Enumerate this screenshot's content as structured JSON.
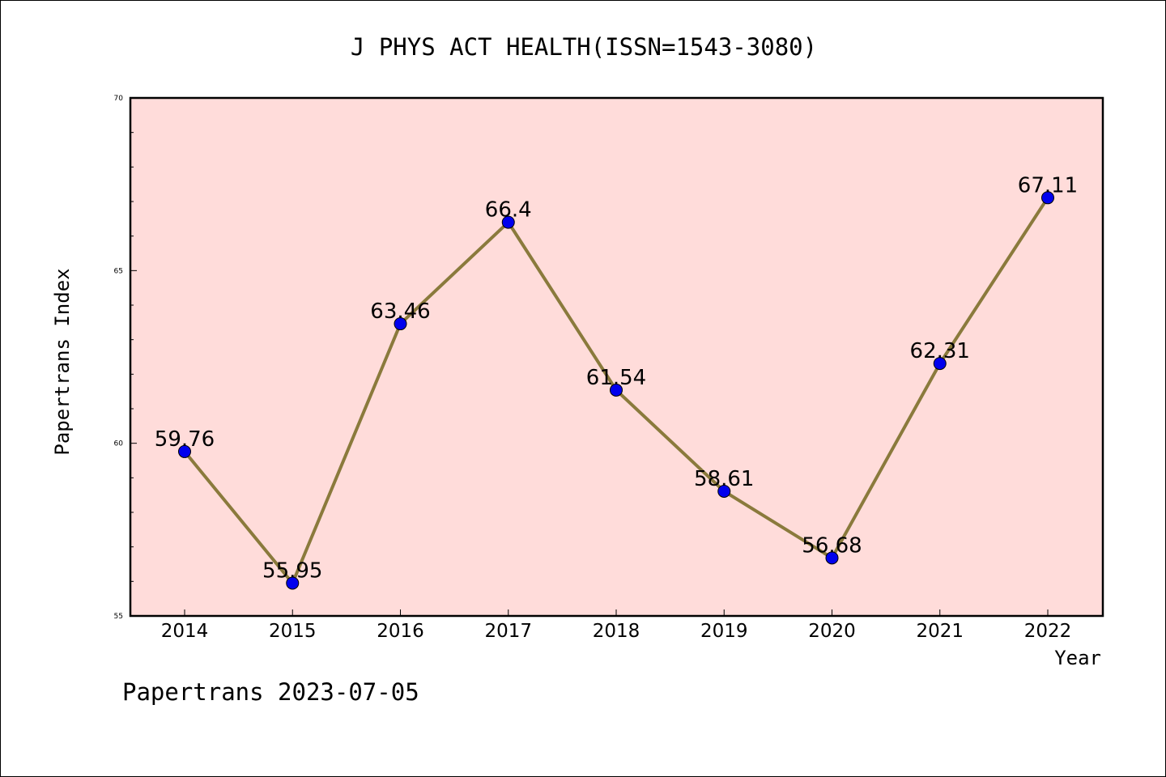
{
  "chart_data": {
    "type": "line",
    "title": "J PHYS ACT HEALTH(ISSN=1543-3080)",
    "xlabel": "Year",
    "ylabel": "Papertrans Index",
    "footer": "Papertrans 2023-07-05",
    "ylim": [
      55,
      70
    ],
    "yticks": [
      55,
      60,
      65,
      70
    ],
    "y_tick_labels": [
      "55",
      "60",
      "65",
      "70"
    ],
    "grid": false,
    "categories": [
      "2014",
      "2015",
      "2016",
      "2017",
      "2018",
      "2019",
      "2020",
      "2021",
      "2022"
    ],
    "series": [
      {
        "values": [
          59.76,
          55.95,
          63.46,
          66.4,
          61.54,
          58.61,
          56.68,
          62.31,
          67.11
        ],
        "labels": [
          "59.76",
          "55.95",
          "63.46",
          "66.4",
          "61.54",
          "58.61",
          "56.68",
          "62.31",
          "67.11"
        ]
      }
    ],
    "colors": {
      "plot_background": "#ffdcda",
      "line": "#8a7a3c",
      "marker": "#0000ee"
    }
  }
}
